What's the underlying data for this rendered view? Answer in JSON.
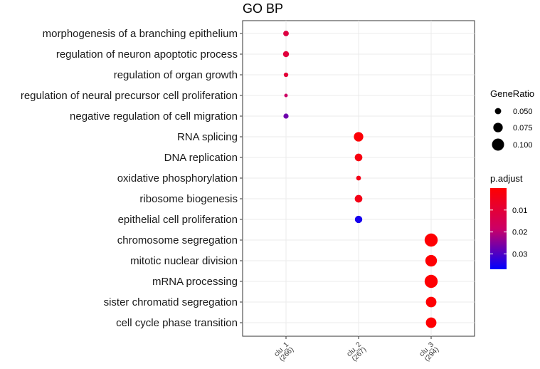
{
  "chart_data": {
    "type": "scatter",
    "title": "GO BP",
    "xlabel": "",
    "ylabel": "",
    "grid": true,
    "legend_placement": "right",
    "x_categories": [
      "clu_1\n(266)",
      "clu_2\n(267)",
      "clu_3\n(294)"
    ],
    "y_terms": [
      "morphogenesis of a branching epithelium",
      "regulation of neuron apoptotic process",
      "regulation of organ growth",
      "regulation of neural precursor cell proliferation",
      "negative regulation of cell migration",
      "RNA splicing",
      "DNA replication",
      "oxidative phosphorylation",
      "ribosome biogenesis",
      "epithelial cell proliferation",
      "chromosome segregation",
      "mitotic nuclear division",
      "mRNA processing",
      "sister chromatid segregation",
      "cell cycle phase transition"
    ],
    "points": [
      {
        "x": "clu_1\n(266)",
        "term": "morphogenesis of a branching epithelium",
        "gene_ratio": 0.045,
        "p_adjust": 0.012
      },
      {
        "x": "clu_1\n(266)",
        "term": "regulation of neuron apoptotic process",
        "gene_ratio": 0.048,
        "p_adjust": 0.011
      },
      {
        "x": "clu_1\n(266)",
        "term": "regulation of organ growth",
        "gene_ratio": 0.038,
        "p_adjust": 0.01
      },
      {
        "x": "clu_1\n(266)",
        "term": "regulation of neural precursor cell proliferation",
        "gene_ratio": 0.032,
        "p_adjust": 0.018
      },
      {
        "x": "clu_1\n(266)",
        "term": "negative regulation of cell migration",
        "gene_ratio": 0.042,
        "p_adjust": 0.027
      },
      {
        "x": "clu_2\n(267)",
        "term": "RNA splicing",
        "gene_ratio": 0.075,
        "p_adjust": 0.001
      },
      {
        "x": "clu_2\n(267)",
        "term": "DNA replication",
        "gene_ratio": 0.06,
        "p_adjust": 0.003
      },
      {
        "x": "clu_2\n(267)",
        "term": "oxidative phosphorylation",
        "gene_ratio": 0.04,
        "p_adjust": 0.004
      },
      {
        "x": "clu_2\n(267)",
        "term": "ribosome biogenesis",
        "gene_ratio": 0.06,
        "p_adjust": 0.004
      },
      {
        "x": "clu_2\n(267)",
        "term": "epithelial cell proliferation",
        "gene_ratio": 0.058,
        "p_adjust": 0.035
      },
      {
        "x": "clu_3\n(294)",
        "term": "chromosome segregation",
        "gene_ratio": 0.11,
        "p_adjust": 0.0005
      },
      {
        "x": "clu_3\n(294)",
        "term": "mitotic nuclear division",
        "gene_ratio": 0.095,
        "p_adjust": 0.0005
      },
      {
        "x": "clu_3\n(294)",
        "term": "mRNA processing",
        "gene_ratio": 0.11,
        "p_adjust": 0.0005
      },
      {
        "x": "clu_3\n(294)",
        "term": "sister chromatid segregation",
        "gene_ratio": 0.085,
        "p_adjust": 0.0005
      },
      {
        "x": "clu_3\n(294)",
        "term": "cell cycle phase transition",
        "gene_ratio": 0.085,
        "p_adjust": 0.0005
      }
    ],
    "size_legend": {
      "title": "GeneRatio",
      "values": [
        0.05,
        0.075,
        0.1
      ],
      "labels": [
        "0.050",
        "0.075",
        "0.100"
      ]
    },
    "color_legend": {
      "title": "p.adjust",
      "range": [
        0,
        0.037
      ],
      "tick_values": [
        0.01,
        0.02,
        0.03
      ],
      "tick_labels": [
        "0.01",
        "0.02",
        "0.03"
      ],
      "color_low": "#ff0000",
      "color_high": "#0000ff"
    }
  }
}
